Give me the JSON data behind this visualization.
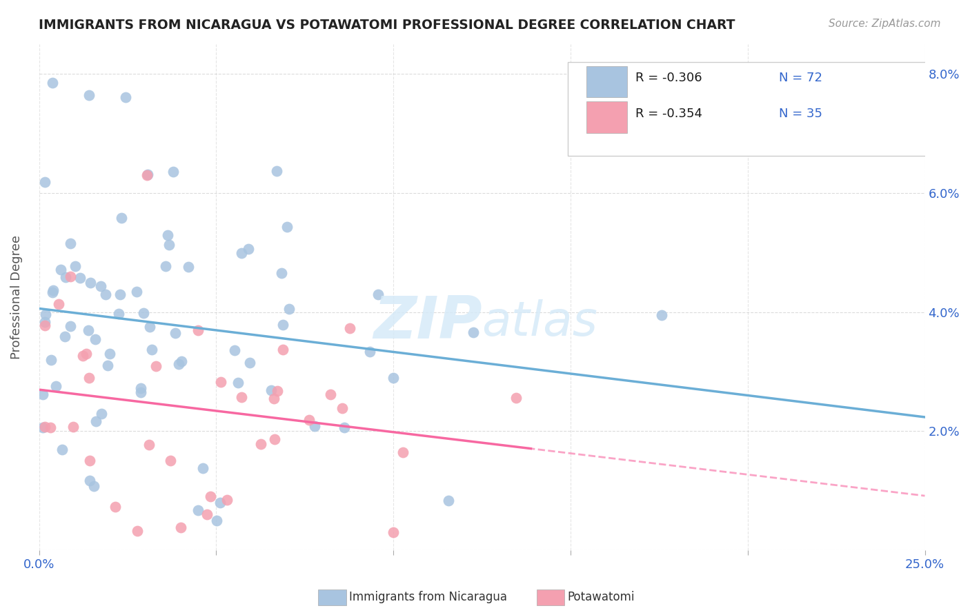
{
  "title": "IMMIGRANTS FROM NICARAGUA VS POTAWATOMI PROFESSIONAL DEGREE CORRELATION CHART",
  "source_text": "Source: ZipAtlas.com",
  "ylabel": "Professional Degree",
  "xmin": 0.0,
  "xmax": 0.25,
  "ymin": 0.0,
  "ymax": 0.085,
  "color_blue": "#a8c4e0",
  "color_pink": "#f4a0b0",
  "line_blue": "#6baed6",
  "line_pink": "#f768a1",
  "line_pink_dash": "#f9b8cc",
  "watermark_color": "#d6eaf8",
  "legend_r1": "R = -0.306",
  "legend_n1": "N = 72",
  "legend_r2": "R = -0.354",
  "legend_n2": "N = 35",
  "label_blue": "Immigrants from Nicaragua",
  "label_pink": "Potawatomi",
  "tick_color": "#3366cc",
  "title_color": "#222222",
  "source_color": "#999999",
  "ylabel_color": "#555555"
}
